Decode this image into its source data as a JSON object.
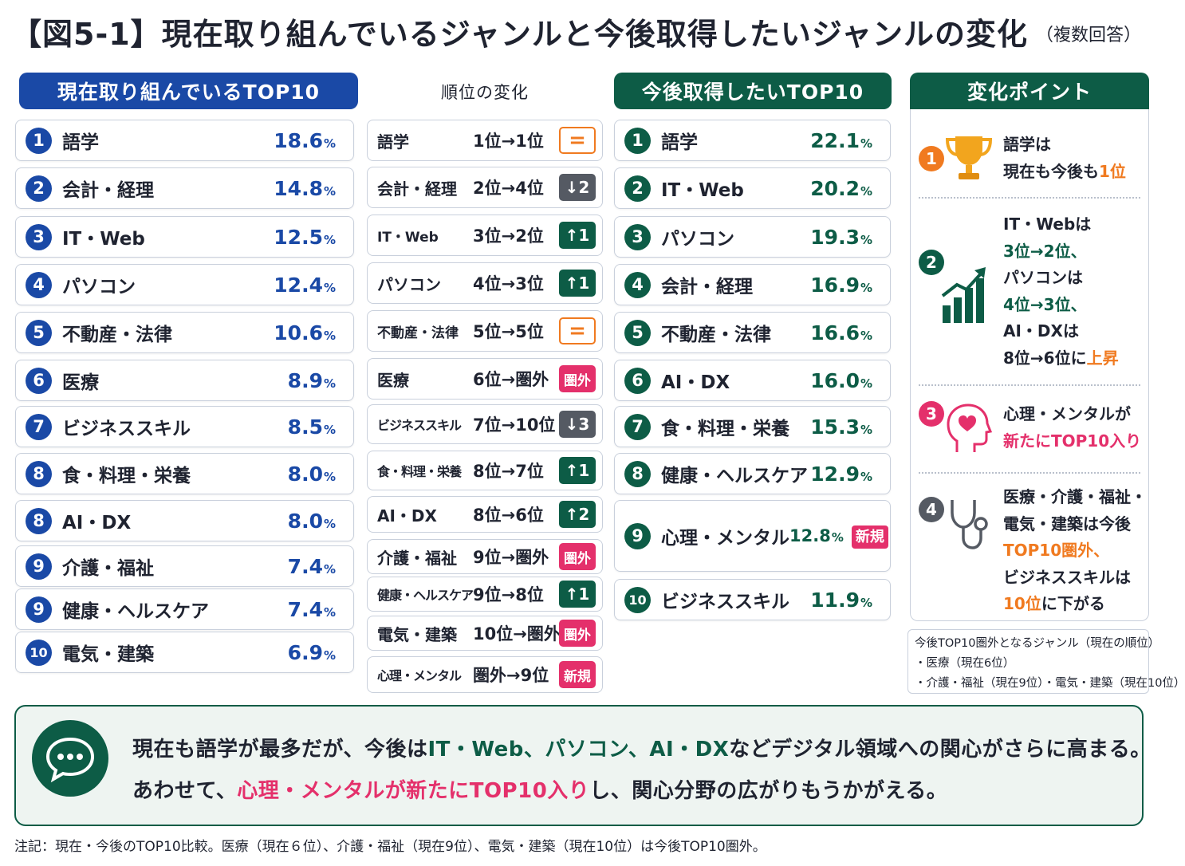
{
  "title": "【図5-1】現在取り組んでいるジャンルと今後取得したいジャンルの変化",
  "note_top": "（複数回答）",
  "headers": {
    "current": "現在取り組んでいるTOP10",
    "rank_change": "順位の変化",
    "future": "今後取得したいTOP10",
    "points": "変化ポイント"
  },
  "chart_data": [
    {
      "type": "table",
      "title": "現在取り組んでいるTOP10",
      "unit": "%",
      "rows": [
        {
          "rank": "1",
          "label": "語学",
          "value": 18.6
        },
        {
          "rank": "2",
          "label": "会計・経理",
          "value": 14.8
        },
        {
          "rank": "3",
          "label": "IT・Web",
          "value": 12.5
        },
        {
          "rank": "4",
          "label": "パソコン",
          "value": 12.4
        },
        {
          "rank": "5",
          "label": "不動産・法律",
          "value": 10.6
        },
        {
          "rank": "6",
          "label": "医療",
          "value": 8.9
        },
        {
          "rank": "7",
          "label": "ビジネススキル",
          "value": 8.5
        },
        {
          "rank": "8",
          "label": "食・料理・栄養",
          "value": 8.0
        },
        {
          "rank": "8",
          "label": "AI・DX",
          "value": 8.0
        },
        {
          "rank": "9",
          "label": "介護・福祉",
          "value": 7.4
        },
        {
          "rank": "9",
          "label": "健康・ヘルスケア",
          "value": 7.4
        },
        {
          "rank": "10",
          "label": "電気・建築",
          "value": 6.9
        }
      ]
    },
    {
      "type": "table",
      "title": "順位の変化",
      "rows": [
        {
          "label": "語学",
          "change": "1位→1位",
          "badge": "=",
          "kind": "same"
        },
        {
          "label": "会計・経理",
          "change": "2位→4位",
          "badge": "↓2",
          "kind": "down"
        },
        {
          "label": "IT・Web",
          "change": "3位→2位",
          "badge": "↑1",
          "kind": "up"
        },
        {
          "label": "パソコン",
          "change": "4位→3位",
          "badge": "↑1",
          "kind": "up"
        },
        {
          "label": "不動産・法律",
          "change": "5位→5位",
          "badge": "=",
          "kind": "same"
        },
        {
          "label": "医療",
          "change": "6位→圏外",
          "badge": "圏外",
          "kind": "out"
        },
        {
          "label": "ビジネススキル",
          "change": "7位→10位",
          "badge": "↓3",
          "kind": "down"
        },
        {
          "label": "食・料理・栄養",
          "change": "8位→7位",
          "badge": "↑1",
          "kind": "up"
        },
        {
          "label": "AI・DX",
          "change": "8位→6位",
          "badge": "↑2",
          "kind": "up"
        },
        {
          "label": "介護・福祉",
          "change": "9位→圏外",
          "badge": "圏外",
          "kind": "out"
        },
        {
          "label": "健康・ヘルスケア",
          "change": "9位→8位",
          "badge": "↑1",
          "kind": "up"
        },
        {
          "label": "電気・建築",
          "change": "10位→圏外",
          "badge": "圏外",
          "kind": "out"
        },
        {
          "label": "心理・メンタル",
          "change": "圏外→9位",
          "badge": "新規",
          "kind": "new"
        }
      ]
    },
    {
      "type": "table",
      "title": "今後取得したいTOP10",
      "unit": "%",
      "rows": [
        {
          "rank": "1",
          "label": "語学",
          "value": 22.1
        },
        {
          "rank": "2",
          "label": "IT・Web",
          "value": 20.2
        },
        {
          "rank": "3",
          "label": "パソコン",
          "value": 19.3
        },
        {
          "rank": "4",
          "label": "会計・経理",
          "value": 16.9
        },
        {
          "rank": "5",
          "label": "不動産・法律",
          "value": 16.6
        },
        {
          "rank": "6",
          "label": "AI・DX",
          "value": 16.0
        },
        {
          "rank": "7",
          "label": "食・料理・栄養",
          "value": 15.3
        },
        {
          "rank": "8",
          "label": "健康・ヘルスケア",
          "value": 12.9
        },
        {
          "rank": "9",
          "label": "心理・メンタル",
          "value": 12.8,
          "tag": "新規"
        },
        {
          "rank": "10",
          "label": "ビジネススキル",
          "value": 11.9
        }
      ]
    }
  ],
  "points": [
    {
      "num": "1",
      "icon": "trophy-icon",
      "lines": [
        "語学は",
        "現在も今後も1位"
      ]
    },
    {
      "num": "2",
      "icon": "bar-chart-up-icon",
      "lines": [
        "IT・Webは",
        "3位→2位、",
        "パソコンは",
        "4位→3位、",
        "AI・DXは",
        "8位→6位に上昇"
      ]
    },
    {
      "num": "3",
      "icon": "heart-head-icon",
      "lines": [
        "心理・メンタルが",
        "新たにTOP10入り"
      ]
    },
    {
      "num": "4",
      "icon": "stethoscope-icon",
      "lines": [
        "医療・介護・福祉・",
        "電気・建築は今後",
        "TOP10圏外、",
        "ビジネススキルは",
        "10位に下がる"
      ]
    }
  ],
  "outside_box": {
    "title": "今後TOP10圏外となるジャンル（現在の順位）",
    "line1": "・医療（現在6位）",
    "line2": "・介護・福祉（現在9位）・電気・建築（現在10位）"
  },
  "summary": {
    "line1_a": "現在も語学が最多だが、今後は",
    "line1_b": "IT・Web、パソコン、AI・DX",
    "line1_c": "などデジタル領域への関心がさらに高まる。",
    "line2_a": "あわせて、",
    "line2_b": "心理・メンタルが新たにTOP10入り",
    "line2_c": "し、関心分野の広がりもうかがえる。"
  },
  "footnote": "注記：現在・今後のTOP10比較。医療（現在６位）、介護・福祉（現在9位）、電気・建築（現在10位）は今後TOP10圏外。",
  "colors": {
    "blue": "#1a49a6",
    "green": "#0d5c46",
    "orange": "#f07a20",
    "pink": "#e4306b",
    "gray": "#555a63"
  }
}
